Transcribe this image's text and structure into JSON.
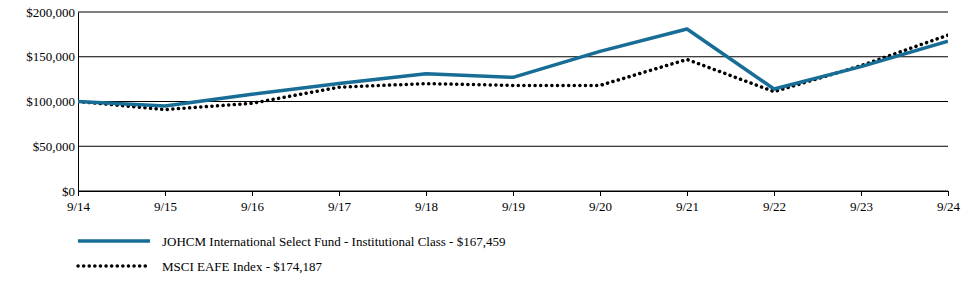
{
  "chart_data": {
    "type": "line",
    "categories": [
      "9/14",
      "9/15",
      "9/16",
      "9/17",
      "9/18",
      "9/19",
      "9/20",
      "9/21",
      "9/22",
      "9/23",
      "9/24"
    ],
    "series": [
      {
        "name": "JOHCM International Select Fund - Institutional Class - $167,459",
        "color": "#176d95",
        "line_style": "solid",
        "values": [
          100000,
          95000,
          108000,
          120000,
          131000,
          127000,
          156000,
          181000,
          114000,
          139000,
          167459
        ]
      },
      {
        "name": "MSCI EAFE Index - $174,187",
        "color": "#000000",
        "line_style": "dotted",
        "values": [
          100000,
          91000,
          98000,
          116000,
          120000,
          118000,
          118000,
          147000,
          111000,
          140000,
          174187
        ]
      }
    ],
    "ylim": [
      0,
      200000
    ],
    "yticks": [
      {
        "value": 0,
        "label": "$0"
      },
      {
        "value": 50000,
        "label": "$50,000"
      },
      {
        "value": 100000,
        "label": "$100,000"
      },
      {
        "value": 150000,
        "label": "$150,000"
      },
      {
        "value": 200000,
        "label": "$200,000"
      }
    ],
    "grid": true,
    "legend": "bottom"
  }
}
